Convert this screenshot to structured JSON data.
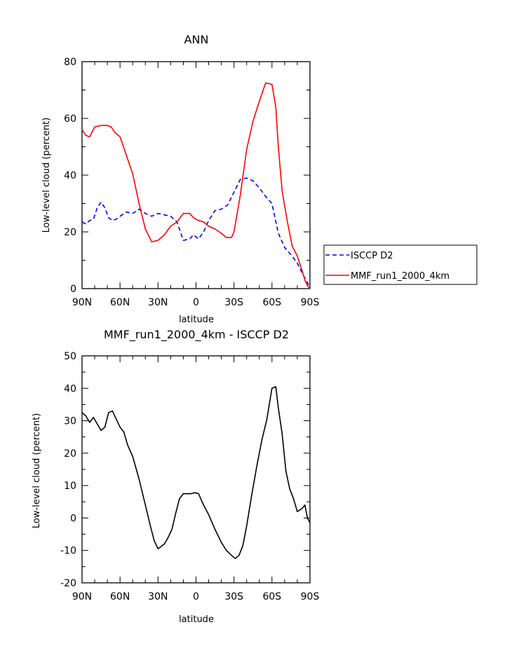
{
  "chart_data": [
    {
      "type": "line",
      "title": "ANN",
      "xlabel": "latitude",
      "ylabel": "Low-level cloud (percent)",
      "xlim": [
        90,
        -90
      ],
      "ylim": [
        0,
        80
      ],
      "x_tick_values": [
        90,
        60,
        30,
        0,
        -30,
        -60,
        -90
      ],
      "x_tick_labels": [
        "90N",
        "60N",
        "30N",
        "0",
        "30S",
        "60S",
        "90S"
      ],
      "y_tick_values": [
        0,
        20,
        40,
        60,
        80
      ],
      "y_tick_labels": [
        "0",
        "20",
        "40",
        "60",
        "80"
      ],
      "legend_position": "right",
      "series": [
        {
          "name": "ISCCP D2",
          "color": "#0000ff",
          "dash": "dashed",
          "x": [
            90,
            87,
            84,
            81,
            78,
            75,
            72,
            69,
            66,
            63,
            60,
            55,
            50,
            45,
            40,
            35,
            30,
            25,
            20,
            15,
            10,
            5,
            2,
            -2,
            -6,
            -10,
            -15,
            -20,
            -25,
            -30,
            -35,
            -40,
            -45,
            -50,
            -55,
            -60,
            -65,
            -70,
            -75,
            -80,
            -85,
            -90
          ],
          "y": [
            23.5,
            22.8,
            24,
            24.5,
            28.5,
            30.5,
            28.5,
            25,
            24,
            24.5,
            25.5,
            27,
            26.5,
            28,
            26.5,
            25.5,
            26.5,
            26,
            25.5,
            23.5,
            17,
            17.5,
            19,
            17.5,
            20,
            24,
            27.5,
            28,
            29.5,
            34,
            38.5,
            39,
            38,
            35.5,
            32.5,
            30,
            19.5,
            14.5,
            12,
            9,
            4.5,
            0.5
          ]
        },
        {
          "name": "MMF_run1_2000_4km",
          "color": "#ff0000",
          "dash": "solid",
          "x": [
            90,
            87,
            84,
            80,
            75,
            70,
            67,
            64,
            60,
            55,
            50,
            45,
            40,
            35,
            30,
            25,
            20,
            15,
            10,
            5,
            2,
            -2,
            -6,
            -10,
            -15,
            -20,
            -24,
            -28,
            -30,
            -35,
            -40,
            -45,
            -50,
            -55,
            -60,
            -63,
            -65,
            -68,
            -72,
            -76,
            -80,
            -84,
            -86,
            -88,
            -90
          ],
          "y": [
            56,
            54,
            53.5,
            57,
            57.5,
            57.5,
            57,
            55,
            53.5,
            47,
            40.5,
            30,
            21,
            16.5,
            17,
            19,
            22,
            23.5,
            26.5,
            26.5,
            25,
            24,
            23.5,
            22,
            21,
            19.5,
            18,
            18,
            20,
            33,
            49,
            59,
            66,
            72.5,
            72,
            64,
            50,
            34.5,
            24,
            15,
            11.5,
            6,
            3,
            1,
            0
          ]
        }
      ]
    },
    {
      "type": "line",
      "title": "MMF_run1_2000_4km - ISCCP D2",
      "xlabel": "latitude",
      "ylabel": "Low-level cloud (percent)",
      "xlim": [
        90,
        -90
      ],
      "ylim": [
        -20,
        50
      ],
      "x_tick_values": [
        90,
        60,
        30,
        0,
        -30,
        -60,
        -90
      ],
      "x_tick_labels": [
        "90N",
        "60N",
        "30N",
        "0",
        "30S",
        "60S",
        "90S"
      ],
      "y_tick_values": [
        -20,
        -10,
        0,
        10,
        20,
        30,
        40,
        50
      ],
      "y_tick_labels": [
        "-20",
        "-10",
        "0",
        "10",
        "20",
        "30",
        "40",
        "50"
      ],
      "series": [
        {
          "color": "#000000",
          "dash": "solid",
          "x": [
            90,
            87,
            84,
            81,
            78,
            75,
            72,
            69,
            66,
            63,
            60,
            57,
            54,
            50,
            45,
            40,
            36,
            33,
            30,
            25,
            22,
            19,
            16,
            13,
            10,
            7,
            4,
            1,
            -2,
            -6,
            -10,
            -15,
            -20,
            -24,
            -28,
            -31,
            -34,
            -37,
            -40,
            -44,
            -48,
            -52,
            -56,
            -60,
            -63,
            -65,
            -68,
            -71,
            -74,
            -77,
            -80,
            -82,
            -84,
            -86,
            -88,
            -90
          ],
          "y": [
            32.5,
            31.5,
            29.5,
            31,
            29,
            27,
            28,
            32.5,
            33,
            30.5,
            28,
            26.5,
            22.5,
            19,
            12,
            4,
            -2.5,
            -7,
            -9.5,
            -8,
            -6,
            -3.5,
            1.5,
            6,
            7.5,
            7.5,
            7.5,
            7.8,
            7.5,
            4,
            1,
            -3.5,
            -7.5,
            -10,
            -11.5,
            -12.5,
            -11.5,
            -8.5,
            -2.5,
            7,
            16,
            24,
            30.5,
            40,
            40.5,
            34,
            26,
            14.5,
            9,
            6,
            2,
            2.5,
            3,
            4,
            0,
            -1.5
          ]
        }
      ]
    }
  ]
}
